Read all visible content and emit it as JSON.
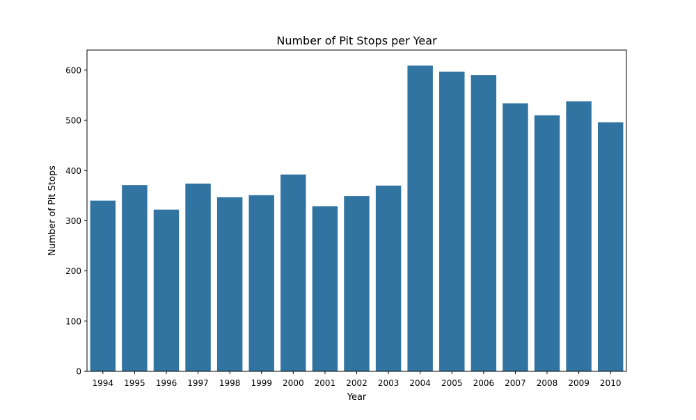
{
  "chart_data": {
    "type": "bar",
    "title": "Number of Pit Stops per Year",
    "xlabel": "Year",
    "ylabel": "Number of Pit Stops",
    "categories": [
      "1994",
      "1995",
      "1996",
      "1997",
      "1998",
      "1999",
      "2000",
      "2001",
      "2002",
      "2003",
      "2004",
      "2005",
      "2006",
      "2007",
      "2008",
      "2009",
      "2010"
    ],
    "values": [
      340,
      371,
      322,
      374,
      347,
      351,
      392,
      329,
      349,
      370,
      609,
      597,
      590,
      534,
      510,
      538,
      496
    ],
    "ylim": [
      0,
      640
    ],
    "yticks": [
      0,
      100,
      200,
      300,
      400,
      500,
      600
    ],
    "bar_color": "#3274a1",
    "grid": false,
    "legend": "none"
  }
}
